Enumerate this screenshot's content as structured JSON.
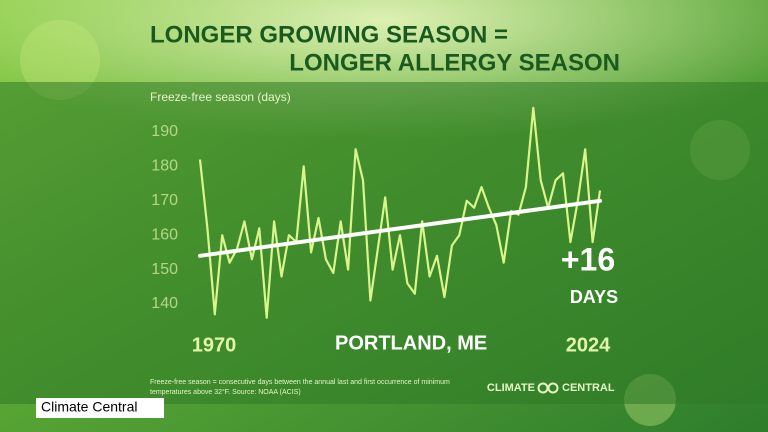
{
  "chart_data": {
    "type": "line",
    "title": [
      "LONGER GROWING SEASON =",
      "LONGER ALLERGY SEASON"
    ],
    "y_label": "Freeze-free season (days)",
    "x": [
      1970,
      1971,
      1972,
      1973,
      1974,
      1975,
      1976,
      1977,
      1978,
      1979,
      1980,
      1981,
      1982,
      1983,
      1984,
      1985,
      1986,
      1987,
      1988,
      1989,
      1990,
      1991,
      1992,
      1993,
      1994,
      1995,
      1996,
      1997,
      1998,
      1999,
      2000,
      2001,
      2002,
      2003,
      2004,
      2005,
      2006,
      2007,
      2008,
      2009,
      2010,
      2011,
      2012,
      2013,
      2014,
      2015,
      2016,
      2017,
      2018,
      2019,
      2020,
      2021,
      2022,
      2023,
      2024
    ],
    "series": [
      {
        "color": "#d9f58c",
        "values": [
          182,
          162,
          137,
          160,
          152,
          156,
          164,
          153,
          162,
          136,
          164,
          148,
          160,
          158,
          180,
          155,
          165,
          153,
          149,
          164,
          150,
          185,
          176,
          141,
          156,
          171,
          150,
          160,
          146,
          143,
          164,
          148,
          154,
          142,
          157,
          160,
          170,
          168,
          174,
          168,
          163,
          152,
          167,
          166,
          174,
          197,
          176,
          168,
          176,
          178,
          158,
          170,
          185,
          158,
          173
        ]
      }
    ],
    "trend": {
      "color": "#ffffff",
      "x": [
        1970,
        2024
      ],
      "values": [
        154,
        170
      ]
    },
    "xlim": [
      1970,
      2024
    ],
    "xticks": [
      1970,
      2024
    ],
    "ylim": [
      130,
      200
    ],
    "yticks": [
      140,
      150,
      160,
      170,
      180,
      190
    ],
    "annotations": {
      "location": "PORTLAND, ME",
      "change": "+16",
      "unit": "DAYS"
    }
  },
  "footnote": [
    "Freeze-free season = consecutive days between the annual last and first occurrence of minimum",
    "temperatures above 32°F. Source: NOAA (ACIS)"
  ],
  "brand": [
    "CLIMATE",
    "CENTRAL"
  ],
  "tag": "Climate Central"
}
